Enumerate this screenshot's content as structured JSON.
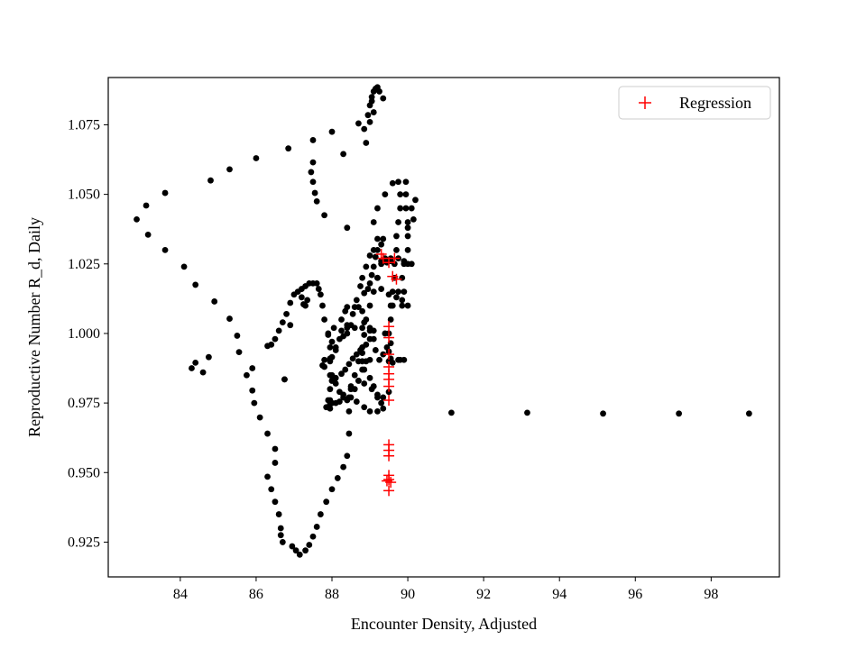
{
  "chart_data": {
    "type": "scatter",
    "title": "",
    "xlabel": "Encounter Density, Adjusted",
    "ylabel": "Reproductive Number R_d, Daily",
    "xlim": [
      82.1,
      99.8
    ],
    "ylim": [
      0.9125,
      1.092
    ],
    "xticks": [
      84,
      86,
      88,
      90,
      92,
      94,
      96,
      98
    ],
    "yticks": [
      0.925,
      0.95,
      0.975,
      1.0,
      1.025,
      1.05,
      1.075
    ],
    "ytick_labels": [
      "0.925",
      "0.950",
      "0.975",
      "1.000",
      "1.025",
      "1.050",
      "1.075"
    ],
    "grid": false,
    "legend": {
      "position": "top-right",
      "entries": [
        "Regression"
      ]
    },
    "series": [
      {
        "marker": "dot",
        "color": "#000000",
        "points": [
          [
            83.6,
            1.0505
          ],
          [
            83.1,
            1.046
          ],
          [
            82.85,
            1.041
          ],
          [
            83.15,
            1.0355
          ],
          [
            83.6,
            1.03
          ],
          [
            84.1,
            1.024
          ],
          [
            84.4,
            1.0175
          ],
          [
            84.9,
            1.0115
          ],
          [
            85.3,
            1.0053
          ],
          [
            85.5,
            0.9992
          ],
          [
            85.55,
            0.9933
          ],
          [
            85.9,
            0.9875
          ],
          [
            85.75,
            0.985
          ],
          [
            85.9,
            0.9795
          ],
          [
            85.95,
            0.975
          ],
          [
            86.1,
            0.9698
          ],
          [
            86.3,
            0.964
          ],
          [
            86.5,
            0.9585
          ],
          [
            86.5,
            0.9535
          ],
          [
            86.3,
            0.9485
          ],
          [
            86.4,
            0.944
          ],
          [
            86.5,
            0.9395
          ],
          [
            86.6,
            0.935
          ],
          [
            86.65,
            0.93
          ],
          [
            86.65,
            0.9275
          ],
          [
            86.7,
            0.925
          ],
          [
            86.95,
            0.9235
          ],
          [
            87.05,
            0.922
          ],
          [
            87.15,
            0.9205
          ],
          [
            87.3,
            0.922
          ],
          [
            87.4,
            0.924
          ],
          [
            87.5,
            0.927
          ],
          [
            87.6,
            0.9305
          ],
          [
            87.7,
            0.935
          ],
          [
            87.85,
            0.9395
          ],
          [
            88.0,
            0.944
          ],
          [
            88.15,
            0.948
          ],
          [
            88.3,
            0.952
          ],
          [
            88.4,
            0.956
          ],
          [
            88.45,
            0.964
          ],
          [
            88.45,
            0.972
          ],
          [
            88.5,
            0.98
          ],
          [
            88.6,
            0.985
          ],
          [
            88.7,
            0.99
          ],
          [
            88.8,
            0.995
          ],
          [
            88.85,
            0.9995
          ],
          [
            88.9,
            1.005
          ],
          [
            89.0,
            1.01
          ],
          [
            89.1,
            1.015
          ],
          [
            89.2,
            1.02
          ],
          [
            89.3,
            1.025
          ],
          [
            89.4,
            1.027
          ],
          [
            89.55,
            1.027
          ],
          [
            89.75,
            1.027
          ],
          [
            89.9,
            1.026
          ],
          [
            90.0,
            1.025
          ],
          [
            90.1,
            1.025
          ],
          [
            89.75,
            1.0545
          ],
          [
            89.8,
            1.05
          ],
          [
            89.8,
            1.045
          ],
          [
            89.75,
            1.04
          ],
          [
            89.7,
            1.035
          ],
          [
            89.7,
            1.03
          ],
          [
            89.65,
            1.025
          ],
          [
            89.65,
            1.02
          ],
          [
            89.6,
            1.015
          ],
          [
            89.55,
            1.01
          ],
          [
            89.55,
            1.005
          ],
          [
            89.5,
            1.0
          ],
          [
            89.45,
            0.995
          ],
          [
            89.5,
            0.99
          ],
          [
            89.35,
            0.9925
          ],
          [
            89.25,
            0.9905
          ],
          [
            89.55,
            0.991
          ],
          [
            89.8,
            0.9905
          ],
          [
            89.95,
            1.0545
          ],
          [
            89.95,
            1.05
          ],
          [
            89.95,
            1.045
          ],
          [
            90.0,
            1.04
          ],
          [
            90.0,
            1.035
          ],
          [
            90.0,
            1.03
          ],
          [
            89.9,
            1.025
          ],
          [
            89.85,
            1.02
          ],
          [
            89.75,
            1.015
          ],
          [
            89.6,
            1.01
          ],
          [
            90.1,
            1.045
          ],
          [
            90.15,
            1.041
          ],
          [
            90.2,
            1.048
          ],
          [
            90.0,
            1.038
          ],
          [
            89.6,
            1.054
          ],
          [
            89.4,
            1.05
          ],
          [
            89.2,
            1.045
          ],
          [
            89.1,
            1.04
          ],
          [
            89.2,
            1.034
          ],
          [
            89.1,
            1.03
          ],
          [
            89.0,
            1.028
          ],
          [
            88.9,
            1.024
          ],
          [
            88.8,
            1.02
          ],
          [
            88.75,
            1.017
          ],
          [
            88.65,
            1.012
          ],
          [
            88.55,
            1.007
          ],
          [
            88.5,
            1.003
          ],
          [
            88.4,
            1.0
          ],
          [
            88.3,
            0.999
          ],
          [
            88.2,
            0.998
          ],
          [
            88.1,
            0.994
          ],
          [
            88.0,
            0.9915
          ],
          [
            87.75,
            0.9885
          ],
          [
            87.8,
            0.988
          ],
          [
            88.0,
            0.997
          ],
          [
            87.9,
            0.9995
          ],
          [
            88.05,
            1.002
          ],
          [
            88.25,
            1.005
          ],
          [
            88.35,
            1.008
          ],
          [
            88.4,
            1.0095
          ],
          [
            88.6,
            1.0095
          ],
          [
            88.7,
            1.0095
          ],
          [
            88.8,
            1.008
          ],
          [
            88.85,
            1.004
          ],
          [
            89.0,
            1.001
          ],
          [
            89.1,
            0.998
          ],
          [
            89.15,
            0.994
          ],
          [
            89.0,
            0.9905
          ],
          [
            88.8,
            0.987
          ],
          [
            88.7,
            0.983
          ],
          [
            88.6,
            0.98
          ],
          [
            88.5,
            0.977
          ],
          [
            88.4,
            0.976
          ],
          [
            88.3,
            0.977
          ],
          [
            88.2,
            0.979
          ],
          [
            88.1,
            0.982
          ],
          [
            88.0,
            0.985
          ],
          [
            87.95,
            0.98
          ],
          [
            87.9,
            0.976
          ],
          [
            87.95,
            0.973
          ],
          [
            88.1,
            0.975
          ],
          [
            88.3,
            0.978
          ],
          [
            88.5,
            0.981
          ],
          [
            88.7,
            0.983
          ],
          [
            88.85,
            0.982
          ],
          [
            89.05,
            0.98
          ],
          [
            89.2,
            0.978
          ],
          [
            89.35,
            0.977
          ],
          [
            89.5,
            0.979
          ],
          [
            88.8,
            0.99
          ],
          [
            88.8,
            0.993
          ],
          [
            88.9,
            0.996
          ],
          [
            89.0,
            0.998
          ],
          [
            88.9,
            0.99
          ],
          [
            88.85,
            0.987
          ],
          [
            89.0,
            0.984
          ],
          [
            89.1,
            0.981
          ],
          [
            89.2,
            0.977
          ],
          [
            89.3,
            0.975
          ],
          [
            89.35,
            0.973
          ],
          [
            89.2,
            0.972
          ],
          [
            89.0,
            0.972
          ],
          [
            88.85,
            0.9735
          ],
          [
            88.65,
            0.9755
          ],
          [
            88.45,
            0.977
          ],
          [
            88.2,
            0.9755
          ],
          [
            88.0,
            0.975
          ],
          [
            87.95,
            0.9745
          ],
          [
            87.85,
            0.9735
          ],
          [
            87.95,
            0.976
          ],
          [
            88.0,
            0.983
          ],
          [
            87.95,
            0.985
          ],
          [
            87.95,
            0.99
          ],
          [
            87.95,
            0.995
          ],
          [
            87.9,
            1.0
          ],
          [
            87.8,
            1.005
          ],
          [
            87.75,
            1.01
          ],
          [
            87.7,
            1.014
          ],
          [
            87.65,
            1.016
          ],
          [
            87.6,
            1.018
          ],
          [
            87.5,
            1.018
          ],
          [
            87.4,
            1.018
          ],
          [
            87.3,
            1.017
          ],
          [
            87.2,
            1.016
          ],
          [
            87.1,
            1.015
          ],
          [
            87.0,
            1.014
          ],
          [
            86.9,
            1.011
          ],
          [
            86.8,
            1.007
          ],
          [
            86.7,
            1.004
          ],
          [
            86.6,
            1.001
          ],
          [
            86.5,
            0.998
          ],
          [
            86.4,
            0.996
          ],
          [
            86.3,
            0.9955
          ],
          [
            87.3,
            1.01
          ],
          [
            87.35,
            1.012
          ],
          [
            87.2,
            1.013
          ],
          [
            86.9,
            1.003
          ],
          [
            86.75,
            0.9835
          ],
          [
            87.25,
            1.0105
          ],
          [
            88.4,
            1.002
          ],
          [
            88.6,
            1.002
          ],
          [
            88.8,
            1.002
          ],
          [
            89.0,
            1.002
          ],
          [
            89.1,
            1.001
          ],
          [
            89.4,
            1.0
          ],
          [
            89.55,
            0.9965
          ],
          [
            89.5,
            0.9935
          ],
          [
            89.75,
            0.9905
          ],
          [
            89.9,
            0.9905
          ],
          [
            89.6,
            0.9895
          ],
          [
            89.2,
            1.02
          ],
          [
            89.3,
            1.016
          ],
          [
            89.5,
            1.014
          ],
          [
            89.7,
            1.013
          ],
          [
            89.85,
            1.012
          ],
          [
            89.9,
            1.015
          ],
          [
            90.0,
            1.01
          ],
          [
            89.85,
            1.01
          ],
          [
            88.85,
            1.0145
          ],
          [
            88.95,
            1.016
          ],
          [
            89.0,
            1.018
          ],
          [
            89.05,
            1.021
          ],
          [
            89.1,
            1.024
          ],
          [
            89.15,
            1.0275
          ],
          [
            89.2,
            1.03
          ],
          [
            89.3,
            1.032
          ],
          [
            89.35,
            1.034
          ],
          [
            89.3,
            1.026
          ],
          [
            89.45,
            1.0255
          ],
          [
            89.55,
            1.026
          ],
          [
            88.4,
            1.003
          ],
          [
            88.25,
            1.001
          ],
          [
            88.1,
            0.995
          ],
          [
            87.95,
            0.991
          ],
          [
            87.8,
            0.9905
          ],
          [
            88.0,
            0.983
          ],
          [
            88.1,
            0.984
          ],
          [
            88.25,
            0.9855
          ],
          [
            88.35,
            0.987
          ],
          [
            88.45,
            0.989
          ],
          [
            88.55,
            0.991
          ],
          [
            88.65,
            0.9925
          ],
          [
            88.75,
            0.994
          ],
          [
            86.85,
            1.0665
          ],
          [
            87.5,
            1.0695
          ],
          [
            88.0,
            1.0725
          ],
          [
            88.3,
            1.0645
          ],
          [
            88.7,
            1.0755
          ],
          [
            88.95,
            1.0785
          ],
          [
            89.0,
            1.082
          ],
          [
            89.05,
            1.085
          ],
          [
            89.1,
            1.087
          ],
          [
            89.2,
            1.0885
          ],
          [
            89.25,
            1.087
          ],
          [
            89.35,
            1.0845
          ],
          [
            89.0,
            1.076
          ],
          [
            88.85,
            1.0735
          ],
          [
            88.9,
            1.0685
          ],
          [
            89.1,
            1.0795
          ],
          [
            89.05,
            1.0835
          ],
          [
            89.15,
            1.088
          ],
          [
            87.5,
            1.0615
          ],
          [
            87.45,
            1.058
          ],
          [
            87.5,
            1.0545
          ],
          [
            87.55,
            1.0505
          ],
          [
            87.6,
            1.0475
          ],
          [
            87.8,
            1.0425
          ],
          [
            88.4,
            1.038
          ],
          [
            86.0,
            1.063
          ],
          [
            85.3,
            1.059
          ],
          [
            84.8,
            1.055
          ],
          [
            84.4,
            0.9895
          ],
          [
            84.3,
            0.9875
          ],
          [
            84.6,
            0.986
          ],
          [
            84.75,
            0.9915
          ],
          [
            86.75,
            0.9835
          ],
          [
            91.15,
            0.9715
          ],
          [
            93.15,
            0.9715
          ],
          [
            95.15,
            0.9712
          ],
          [
            97.15,
            0.9712
          ],
          [
            99.0,
            0.9712
          ]
        ]
      },
      {
        "name": "Regression",
        "marker": "plus",
        "color": "#ff0000",
        "points": [
          [
            89.3,
            1.0285
          ],
          [
            89.35,
            1.027
          ],
          [
            89.5,
            1.0255
          ],
          [
            89.65,
            1.027
          ],
          [
            89.6,
            1.0205
          ],
          [
            89.7,
            1.0195
          ],
          [
            89.5,
            1.0025
          ],
          [
            89.5,
            0.9985
          ],
          [
            89.5,
            0.9925
          ],
          [
            89.5,
            0.988
          ],
          [
            89.5,
            0.9855
          ],
          [
            89.5,
            0.9835
          ],
          [
            89.5,
            0.981
          ],
          [
            89.5,
            0.976
          ],
          [
            89.5,
            0.96
          ],
          [
            89.5,
            0.958
          ],
          [
            89.5,
            0.956
          ],
          [
            89.5,
            0.949
          ],
          [
            89.5,
            0.9475
          ],
          [
            89.45,
            0.947
          ],
          [
            89.55,
            0.9465
          ],
          [
            89.5,
            0.9435
          ]
        ]
      }
    ]
  }
}
